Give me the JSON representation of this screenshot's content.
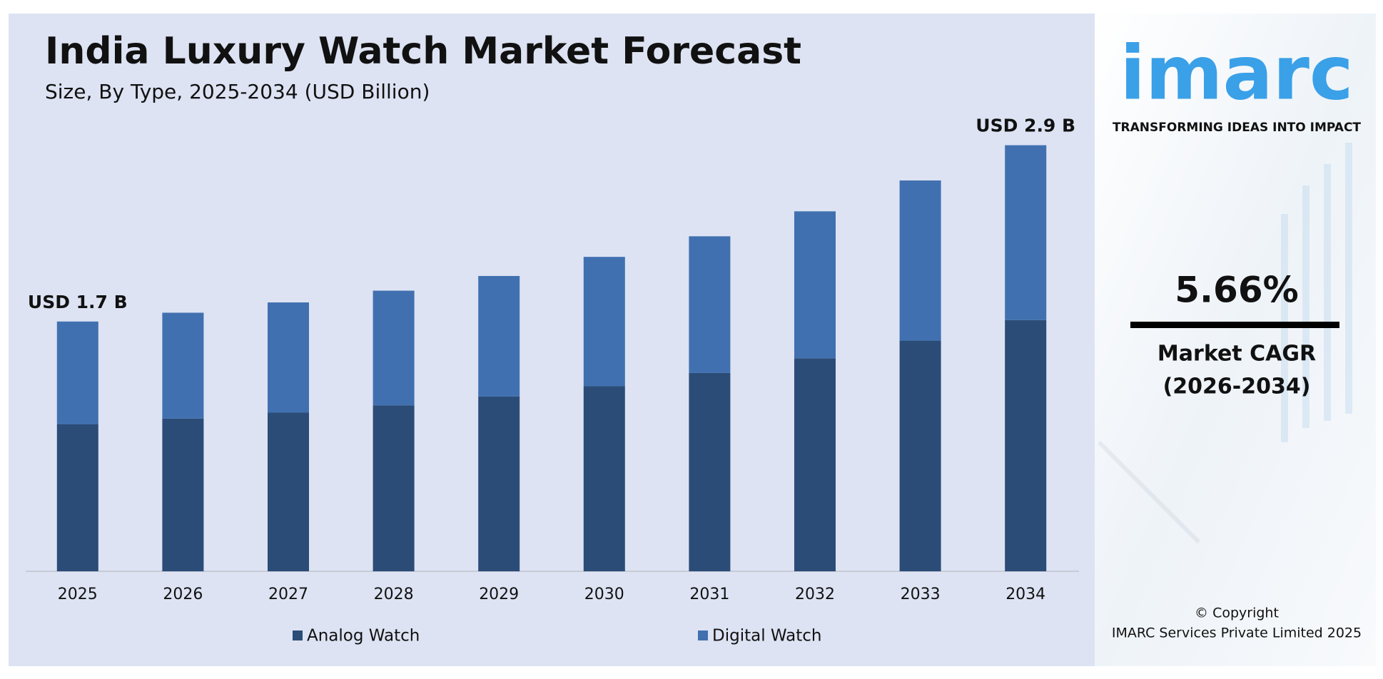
{
  "chart_data": {
    "type": "stacked_bar",
    "title": "India Luxury Watch Market Forecast",
    "subtitle": "Size, By Type, 2025-2034 (USD Billion)",
    "categories": [
      "2025",
      "2026",
      "2027",
      "2028",
      "2029",
      "2030",
      "2031",
      "2032",
      "2033",
      "2034"
    ],
    "series": [
      {
        "name": "Analog Watch",
        "color": "#2b4c77",
        "values": [
          1.0,
          1.04,
          1.08,
          1.13,
          1.19,
          1.26,
          1.35,
          1.45,
          1.57,
          1.71
        ]
      },
      {
        "name": "Digital Watch",
        "color": "#4170b0",
        "values": [
          0.7,
          0.72,
          0.75,
          0.78,
          0.82,
          0.88,
          0.93,
          1.0,
          1.09,
          1.19
        ]
      }
    ],
    "annotations": [
      {
        "category": "2025",
        "text": "USD 1.7 B",
        "value": 1.7
      },
      {
        "category": "2034",
        "text": "USD 2.9 B",
        "value": 2.9
      }
    ],
    "ylim": [
      0,
      3
    ]
  },
  "sidebar": {
    "logo": "imarc",
    "tagline": "TRANSFORMING IDEAS INTO IMPACT",
    "cagr": "5.66%",
    "cagr_label": "Market CAGR",
    "cagr_period": "(2026-2034)",
    "copyright": "© Copyright",
    "company": "IMARC Services Private Limited 2025"
  }
}
